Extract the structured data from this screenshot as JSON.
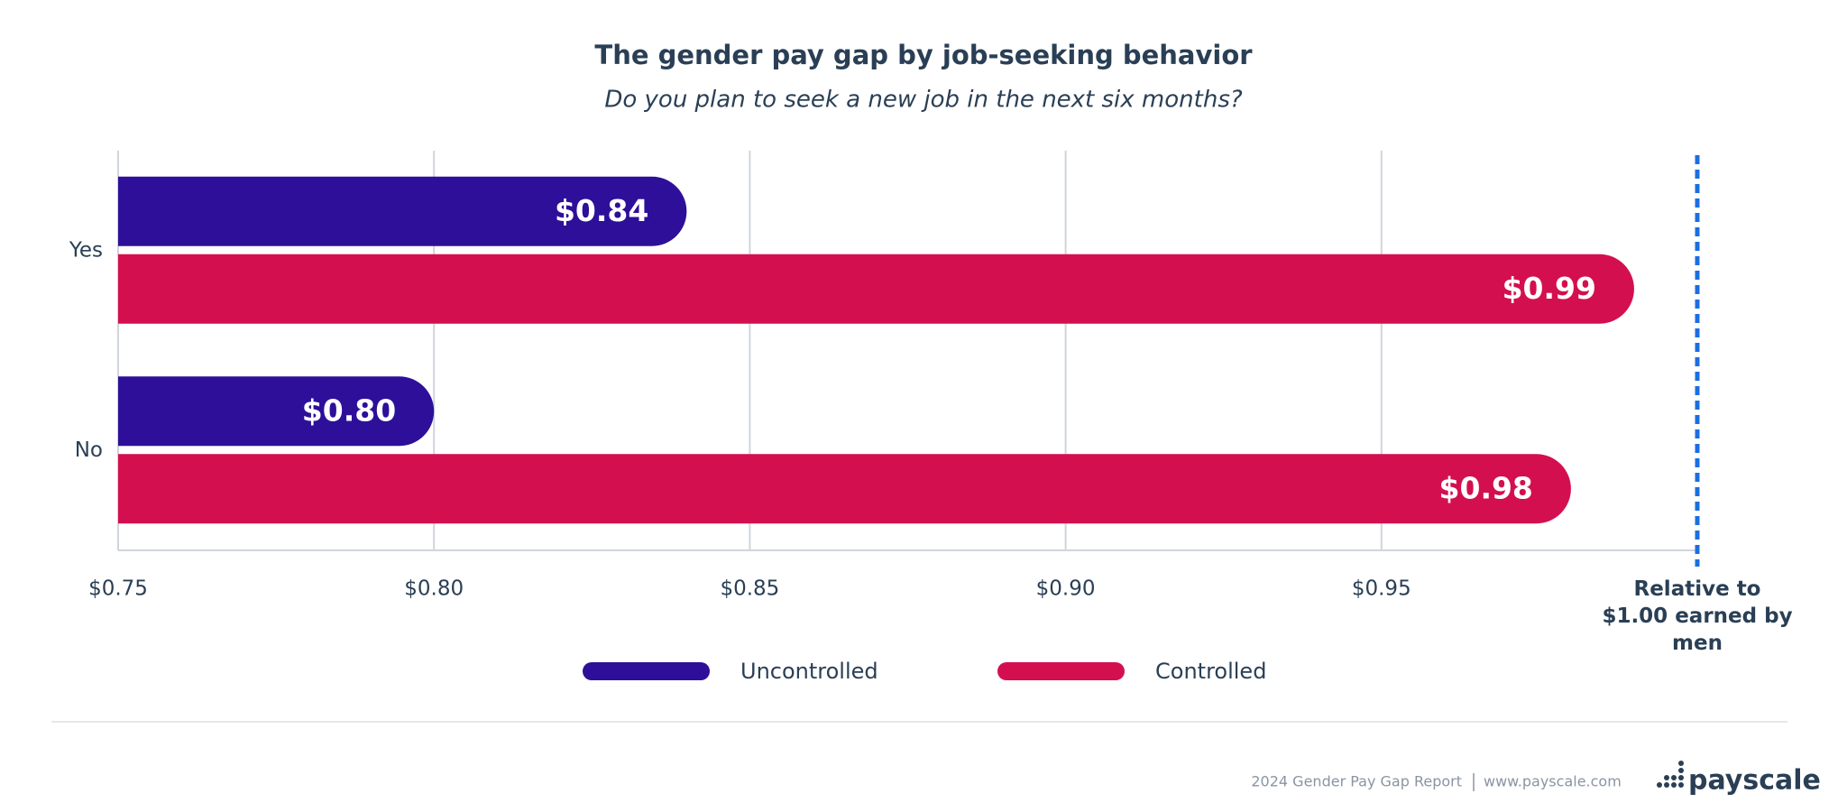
{
  "chart_data": {
    "type": "hbar",
    "title": "The gender pay gap by job-seeking behavior",
    "subtitle": "Do you plan to seek a new job in the next six months?",
    "categories": [
      "Yes",
      "No"
    ],
    "series": [
      {
        "name": "Uncontrolled",
        "color": "#2e0f99",
        "values": [
          0.84,
          0.8
        ],
        "value_labels": [
          "$0.84",
          "$0.80"
        ]
      },
      {
        "name": "Controlled",
        "color": "#d40f50",
        "values": [
          0.99,
          0.98
        ],
        "value_labels": [
          "$0.99",
          "$0.98"
        ]
      }
    ],
    "xlim": [
      0.75,
      1.0
    ],
    "xticks": [
      {
        "value": 0.75,
        "label": "$0.75"
      },
      {
        "value": 0.8,
        "label": "$0.80"
      },
      {
        "value": 0.85,
        "label": "$0.85"
      },
      {
        "value": 0.9,
        "label": "$0.90"
      },
      {
        "value": 0.95,
        "label": "$0.95"
      }
    ],
    "reference_line": {
      "value": 1.0,
      "label": "Relative to $1.00 earned by men",
      "color": "#1a6fe0"
    },
    "grid": true,
    "legend": "bottom",
    "source": "2024 Gender Pay Gap Report",
    "source_url": "www.payscale.com",
    "brand": "payscale"
  }
}
